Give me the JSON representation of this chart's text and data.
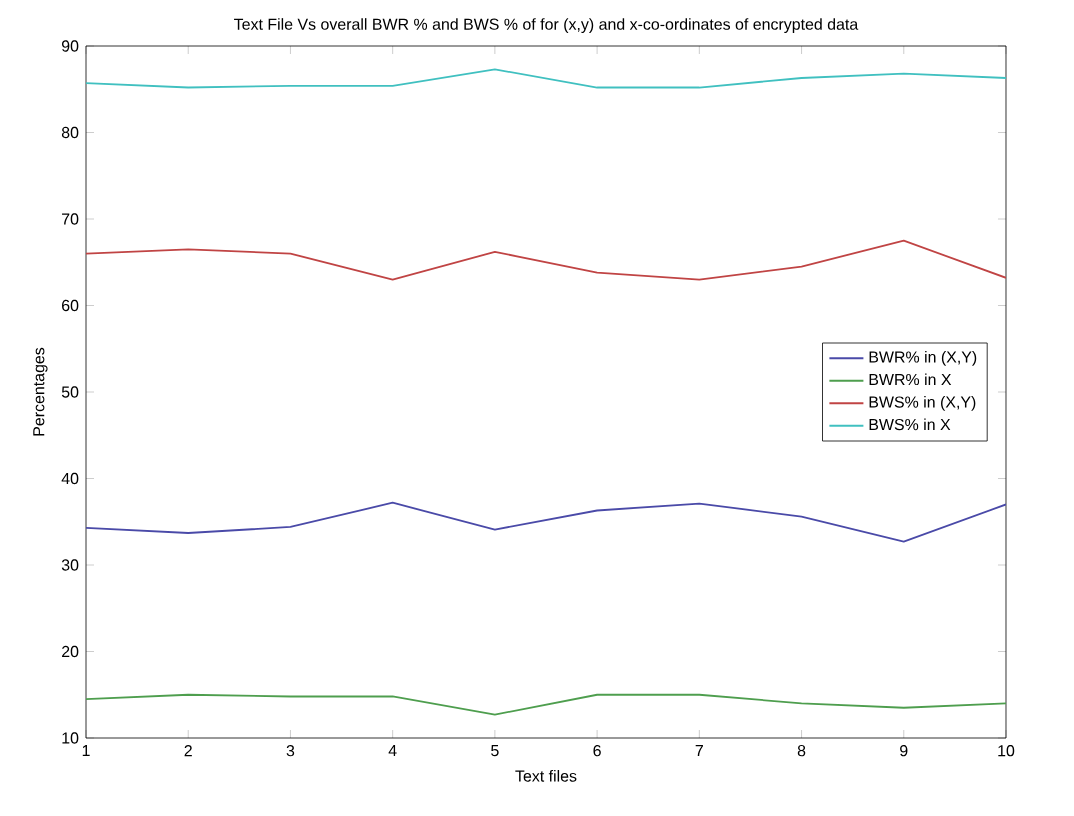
{
  "chart_data": {
    "type": "line",
    "title": "Text File Vs overall  BWR % and BWS % of for (x,y) and x-co-ordinates of encrypted data",
    "xlabel": "Text files",
    "ylabel": "Percentages",
    "x": [
      1,
      2,
      3,
      4,
      5,
      6,
      7,
      8,
      9,
      10
    ],
    "series": [
      {
        "name": "BWR% in (X,Y)",
        "color": "#4a4aa8",
        "values": [
          34.3,
          33.7,
          34.4,
          37.2,
          34.1,
          36.3,
          37.1,
          35.6,
          32.7,
          37.0
        ]
      },
      {
        "name": "BWR% in X",
        "color": "#4e9e4e",
        "values": [
          14.5,
          15.0,
          14.8,
          14.8,
          12.7,
          15.0,
          15.0,
          14.0,
          13.5,
          14.0
        ]
      },
      {
        "name": "BWS% in (X,Y)",
        "color": "#c04444",
        "values": [
          66.0,
          66.5,
          66.0,
          63.0,
          66.2,
          63.8,
          63.0,
          64.5,
          67.5,
          63.2
        ]
      },
      {
        "name": "BWS% in X",
        "color": "#40c0c0",
        "values": [
          85.7,
          85.2,
          85.4,
          85.4,
          87.3,
          85.2,
          85.2,
          86.3,
          86.8,
          86.3
        ]
      }
    ],
    "xlim": [
      1,
      10
    ],
    "ylim": [
      10,
      90
    ],
    "xticks": [
      1,
      2,
      3,
      4,
      5,
      6,
      7,
      8,
      9,
      10
    ],
    "yticks": [
      10,
      20,
      30,
      40,
      50,
      60,
      70,
      80,
      90
    ],
    "legend": "right",
    "grid": false,
    "marker": "none",
    "line_style": "solid"
  }
}
